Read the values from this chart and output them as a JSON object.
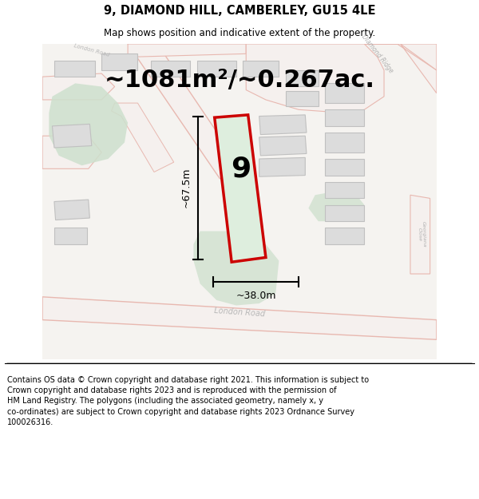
{
  "title": "9, DIAMOND HILL, CAMBERLEY, GU15 4LE",
  "subtitle": "Map shows position and indicative extent of the property.",
  "footer": "Contains OS data © Crown copyright and database right 2021. This information is subject to\nCrown copyright and database rights 2023 and is reproduced with the permission of\nHM Land Registry. The polygons (including the associated geometry, namely x, y\nco-ordinates) are subject to Crown copyright and database rights 2023 Ordnance Survey\n100026316.",
  "area_text": "~1081m²/~0.267ac.",
  "label_9": "9",
  "dim_height": "~67.5m",
  "dim_width": "~38.0m",
  "map_bg": "#f5f3f0",
  "road_stroke": "#e8b8b0",
  "road_fill": "#f5f0ee",
  "green_color": "#cde0cd",
  "building_fill": "#dcdcdc",
  "building_stroke": "#c0c0c0",
  "plot_fill": "#deeede",
  "plot_stroke": "#cc0000",
  "title_fontsize": 10.5,
  "subtitle_fontsize": 8.5,
  "footer_fontsize": 7.0,
  "area_fontsize": 22,
  "label_fontsize": 26,
  "dim_fontsize": 9
}
